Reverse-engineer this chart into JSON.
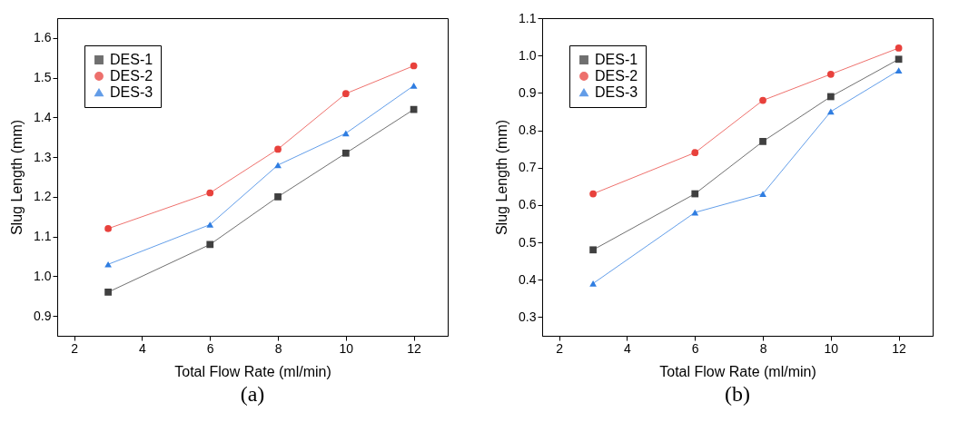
{
  "chart_data": [
    {
      "type": "line",
      "xlabel": "Total Flow Rate (ml/min)",
      "ylabel": "Slug Length (mm)",
      "annotations": [
        "(a)"
      ],
      "x": [
        3,
        6,
        8,
        10,
        12
      ],
      "xlim": [
        1.5,
        13
      ],
      "xticks": [
        2,
        4,
        6,
        8,
        10,
        12
      ],
      "ylim": [
        0.85,
        1.65
      ],
      "yticks": [
        0.9,
        {
          "value": 1,
          "label": "1.0"
        },
        1.1,
        1.2,
        1.3,
        1.4,
        1.5,
        1.6
      ],
      "grid": false,
      "legend": "top left",
      "line_style": "solid",
      "series": [
        {
          "name": "DES-1",
          "color": "#404040",
          "marker": "square",
          "values": [
            0.96,
            1.08,
            1.2,
            1.31,
            1.42
          ]
        },
        {
          "name": "DES-2",
          "color": "#e8413c",
          "marker": "circle",
          "values": [
            1.12,
            1.21,
            1.32,
            1.46,
            1.53
          ]
        },
        {
          "name": "DES-3",
          "color": "#2f7de1",
          "marker": "triangle",
          "values": [
            1.03,
            1.13,
            1.28,
            1.36,
            1.48
          ]
        }
      ]
    },
    {
      "type": "line",
      "xlabel": "Total Flow Rate (ml/min)",
      "ylabel": "Slug Length (mm)",
      "annotations": [
        "(b)"
      ],
      "x": [
        3,
        6,
        8,
        10,
        12
      ],
      "xlim": [
        1.5,
        13
      ],
      "xticks": [
        2,
        4,
        6,
        8,
        10,
        12
      ],
      "ylim": [
        0.25,
        1.1
      ],
      "yticks": [
        0.3,
        0.4,
        0.5,
        0.6,
        0.7,
        0.8,
        0.9,
        {
          "value": 1,
          "label": "1.0"
        },
        1.1
      ],
      "grid": false,
      "legend": "top left",
      "line_style": "solid",
      "series": [
        {
          "name": "DES-1",
          "color": "#404040",
          "marker": "square",
          "values": [
            0.48,
            0.63,
            0.77,
            0.89,
            0.99
          ]
        },
        {
          "name": "DES-2",
          "color": "#e8413c",
          "marker": "circle",
          "values": [
            0.63,
            0.74,
            0.88,
            0.95,
            1.02
          ]
        },
        {
          "name": "DES-3",
          "color": "#2f7de1",
          "marker": "triangle",
          "values": [
            0.39,
            0.58,
            0.63,
            0.85,
            0.96
          ]
        }
      ]
    }
  ]
}
